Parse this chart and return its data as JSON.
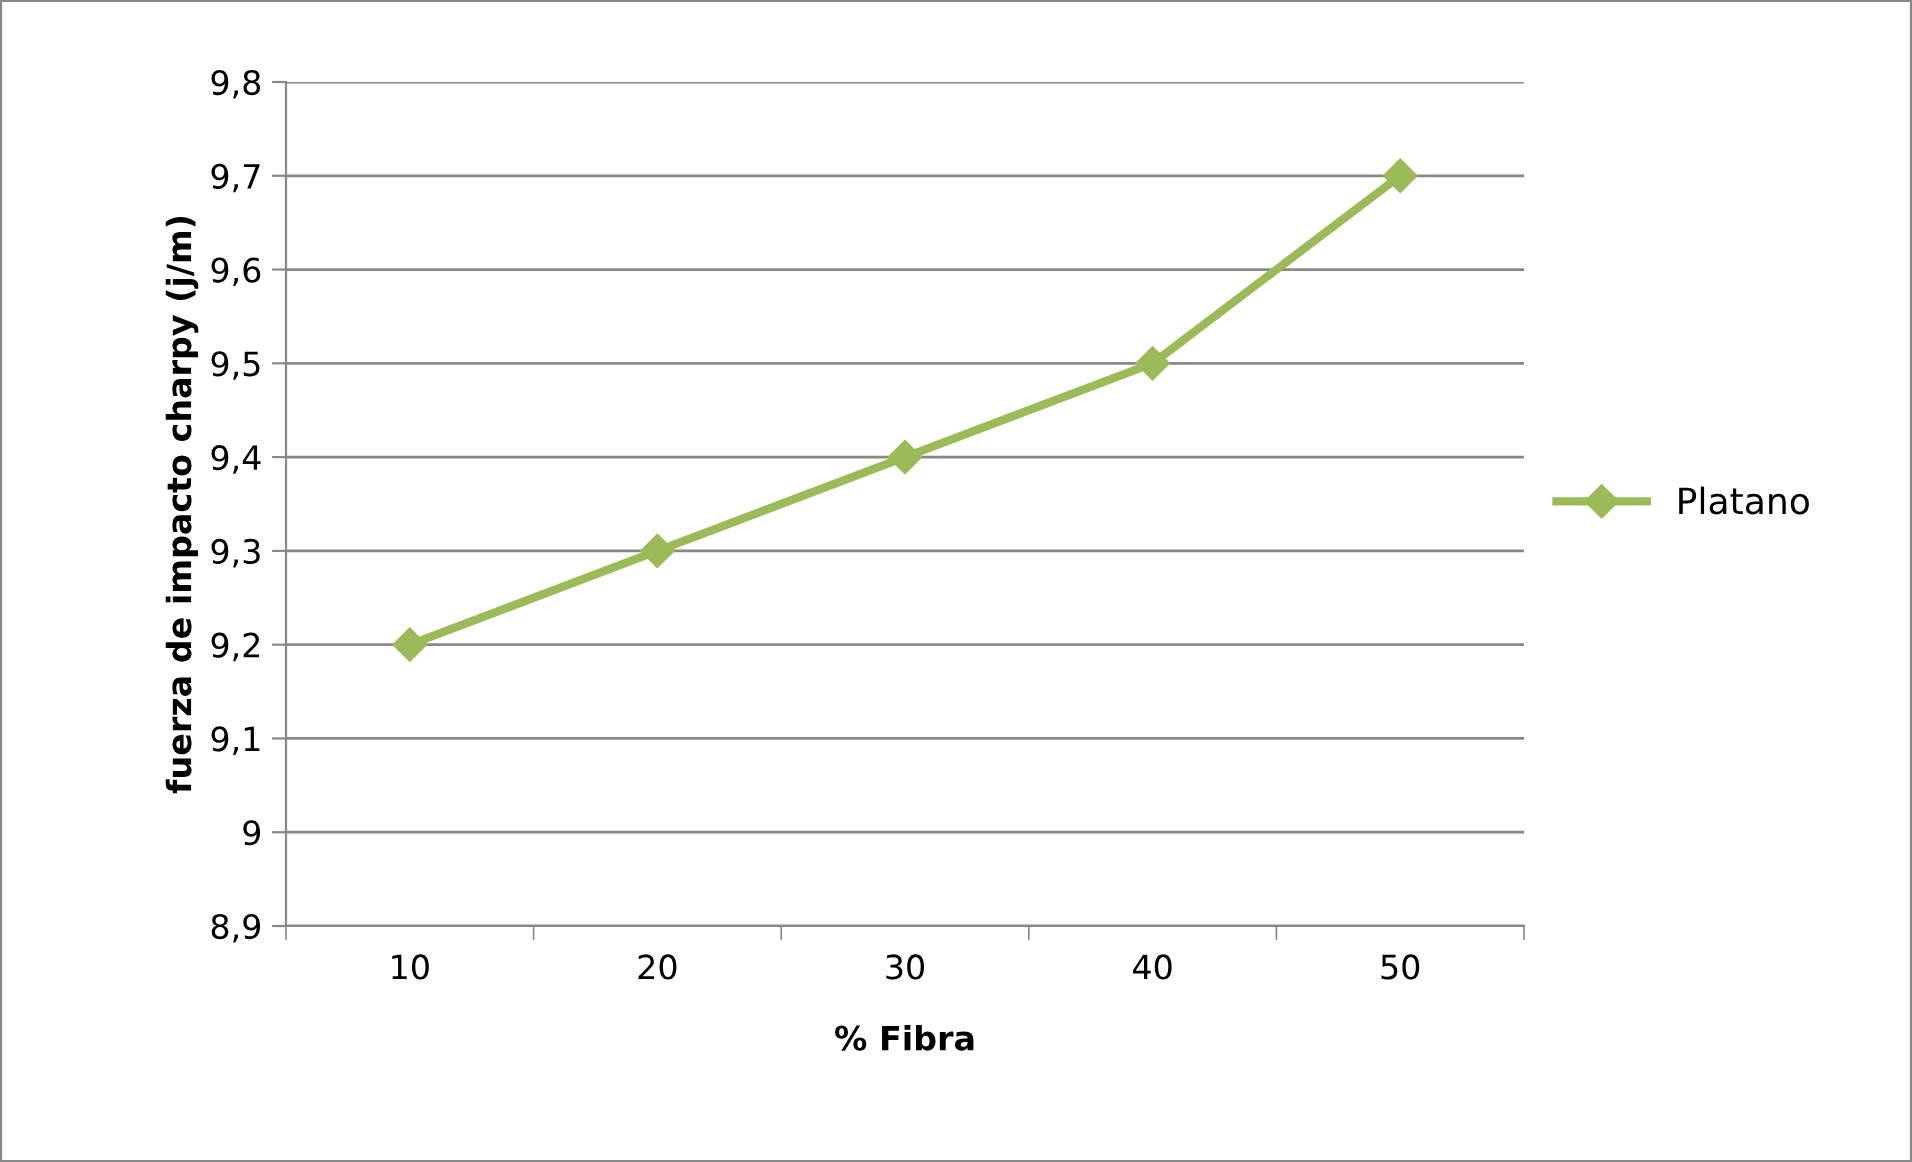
{
  "chart_data": {
    "type": "line",
    "xlabel": "% Fibra",
    "ylabel": "fuerza de impacto charpy (j/m)",
    "categories": [
      "10",
      "20",
      "30",
      "40",
      "50"
    ],
    "series": [
      {
        "name": "Platano",
        "color": "#9bbb59",
        "values": [
          9.2,
          9.3,
          9.4,
          9.5,
          9.7
        ]
      }
    ],
    "ylim": [
      8.9,
      9.8
    ],
    "yticks": [
      {
        "value": 8.9,
        "label": "8,9"
      },
      9,
      {
        "value": 9.1,
        "label": "9,1"
      },
      {
        "value": 9.2,
        "label": "9,2"
      },
      {
        "value": 9.3,
        "label": "9,3"
      },
      {
        "value": 9.4,
        "label": "9,4"
      },
      {
        "value": 9.5,
        "label": "9,5"
      },
      {
        "value": 9.6,
        "label": "9,6"
      },
      {
        "value": 9.7,
        "label": "9,7"
      },
      {
        "value": 9.8,
        "label": "9,8"
      }
    ],
    "grid": "y",
    "legend": "right",
    "marker": "diamond",
    "line_style": "solid"
  }
}
